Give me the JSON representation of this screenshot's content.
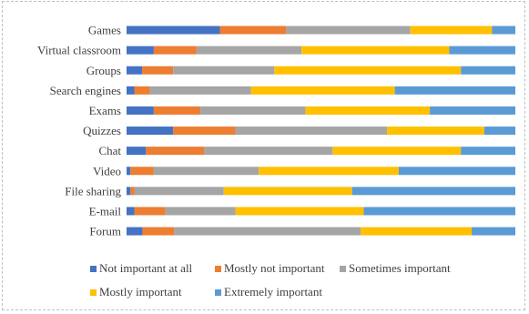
{
  "chart_data": {
    "type": "bar",
    "orientation": "horizontal",
    "stacked": "percent",
    "categories": [
      "Games",
      "Virtual classroom",
      "Groups",
      "Search engines",
      "Exams",
      "Quizzes",
      "Chat",
      "Video",
      "File sharing",
      "E-mail",
      "Forum"
    ],
    "series": [
      {
        "name": "Not important at all",
        "color": "#4472C4",
        "values": [
          24,
          7,
          4,
          2,
          7,
          12,
          5,
          1,
          1,
          2,
          4
        ]
      },
      {
        "name": "Mostly not important",
        "color": "#ED7D31",
        "values": [
          17,
          11,
          8,
          4,
          12,
          16,
          15,
          6,
          1,
          8,
          8
        ]
      },
      {
        "name": "Sometimes important",
        "color": "#A5A5A5",
        "values": [
          32,
          27,
          26,
          26,
          27,
          39,
          33,
          27,
          23,
          18,
          47
        ]
      },
      {
        "name": "Mostly important",
        "color": "#FFC000",
        "values": [
          21,
          38,
          48,
          37,
          32,
          25,
          33,
          36,
          33,
          33,
          28
        ]
      },
      {
        "name": "Extremely important",
        "color": "#5B9BD5",
        "values": [
          6,
          17,
          14,
          31,
          22,
          8,
          14,
          30,
          42,
          39,
          11
        ]
      }
    ],
    "xlim": [
      0,
      100
    ],
    "grid": false,
    "legend_position": "bottom"
  }
}
